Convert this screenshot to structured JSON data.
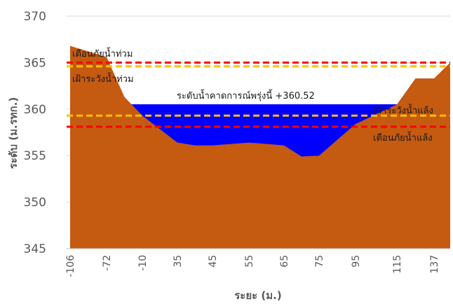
{
  "chart_data": {
    "type": "area",
    "title": "",
    "xlabel": "ระยะ (ม.)",
    "ylabel": "ระดับ (ม.รทก.)",
    "ylim": [
      345,
      370
    ],
    "yticks": [
      "345",
      "350",
      "355",
      "360",
      "365",
      "370"
    ],
    "grid": true,
    "legend": "none",
    "x_tick_labels": [
      "-106",
      "-72",
      "-10",
      "35",
      "45",
      "55",
      "65",
      "75",
      "95",
      "115",
      "137"
    ],
    "series": [
      {
        "kind": "ground-profile",
        "color": "#C55A11",
        "points": [
          {
            "x": -106,
            "y": 366.8
          },
          {
            "x": -72,
            "y": 365.6
          },
          {
            "x": -41,
            "y": 361.3
          },
          {
            "x": -10,
            "y": 359.3
          },
          {
            "x": 35,
            "y": 356.4
          },
          {
            "x": 40,
            "y": 356.1
          },
          {
            "x": 45,
            "y": 356.1
          },
          {
            "x": 55,
            "y": 356.4
          },
          {
            "x": 65,
            "y": 356.1
          },
          {
            "x": 70,
            "y": 354.9
          },
          {
            "x": 75,
            "y": 355.0
          },
          {
            "x": 95,
            "y": 358.4
          },
          {
            "x": 115,
            "y": 360.5
          },
          {
            "x": 126,
            "y": 363.3
          },
          {
            "x": 137,
            "y": 363.3
          },
          {
            "x": 150,
            "y": 365.0
          }
        ]
      },
      {
        "kind": "water-level",
        "color": "#0000FF",
        "level": 360.52
      }
    ],
    "reference_lines": [
      {
        "key": "flood_warning",
        "y": 365.0,
        "color": "#FF0000",
        "label": "เตือนภัยน้ำท่วม"
      },
      {
        "key": "flood_watch",
        "y": 364.6,
        "color": "#FFC000",
        "label": "เฝ้าระวังน้ำท่วม"
      },
      {
        "key": "drought_watch",
        "y": 359.3,
        "color": "#FFC000",
        "label": "เฝ้าระวังน้ำแล้ง"
      },
      {
        "key": "drought_warning",
        "y": 358.1,
        "color": "#FF0000",
        "label": "เตือนภัยน้ำแล้ง"
      }
    ],
    "annotation": "ระดับน้ำคาดการณ์พรุ่งนี้ +360.52"
  }
}
